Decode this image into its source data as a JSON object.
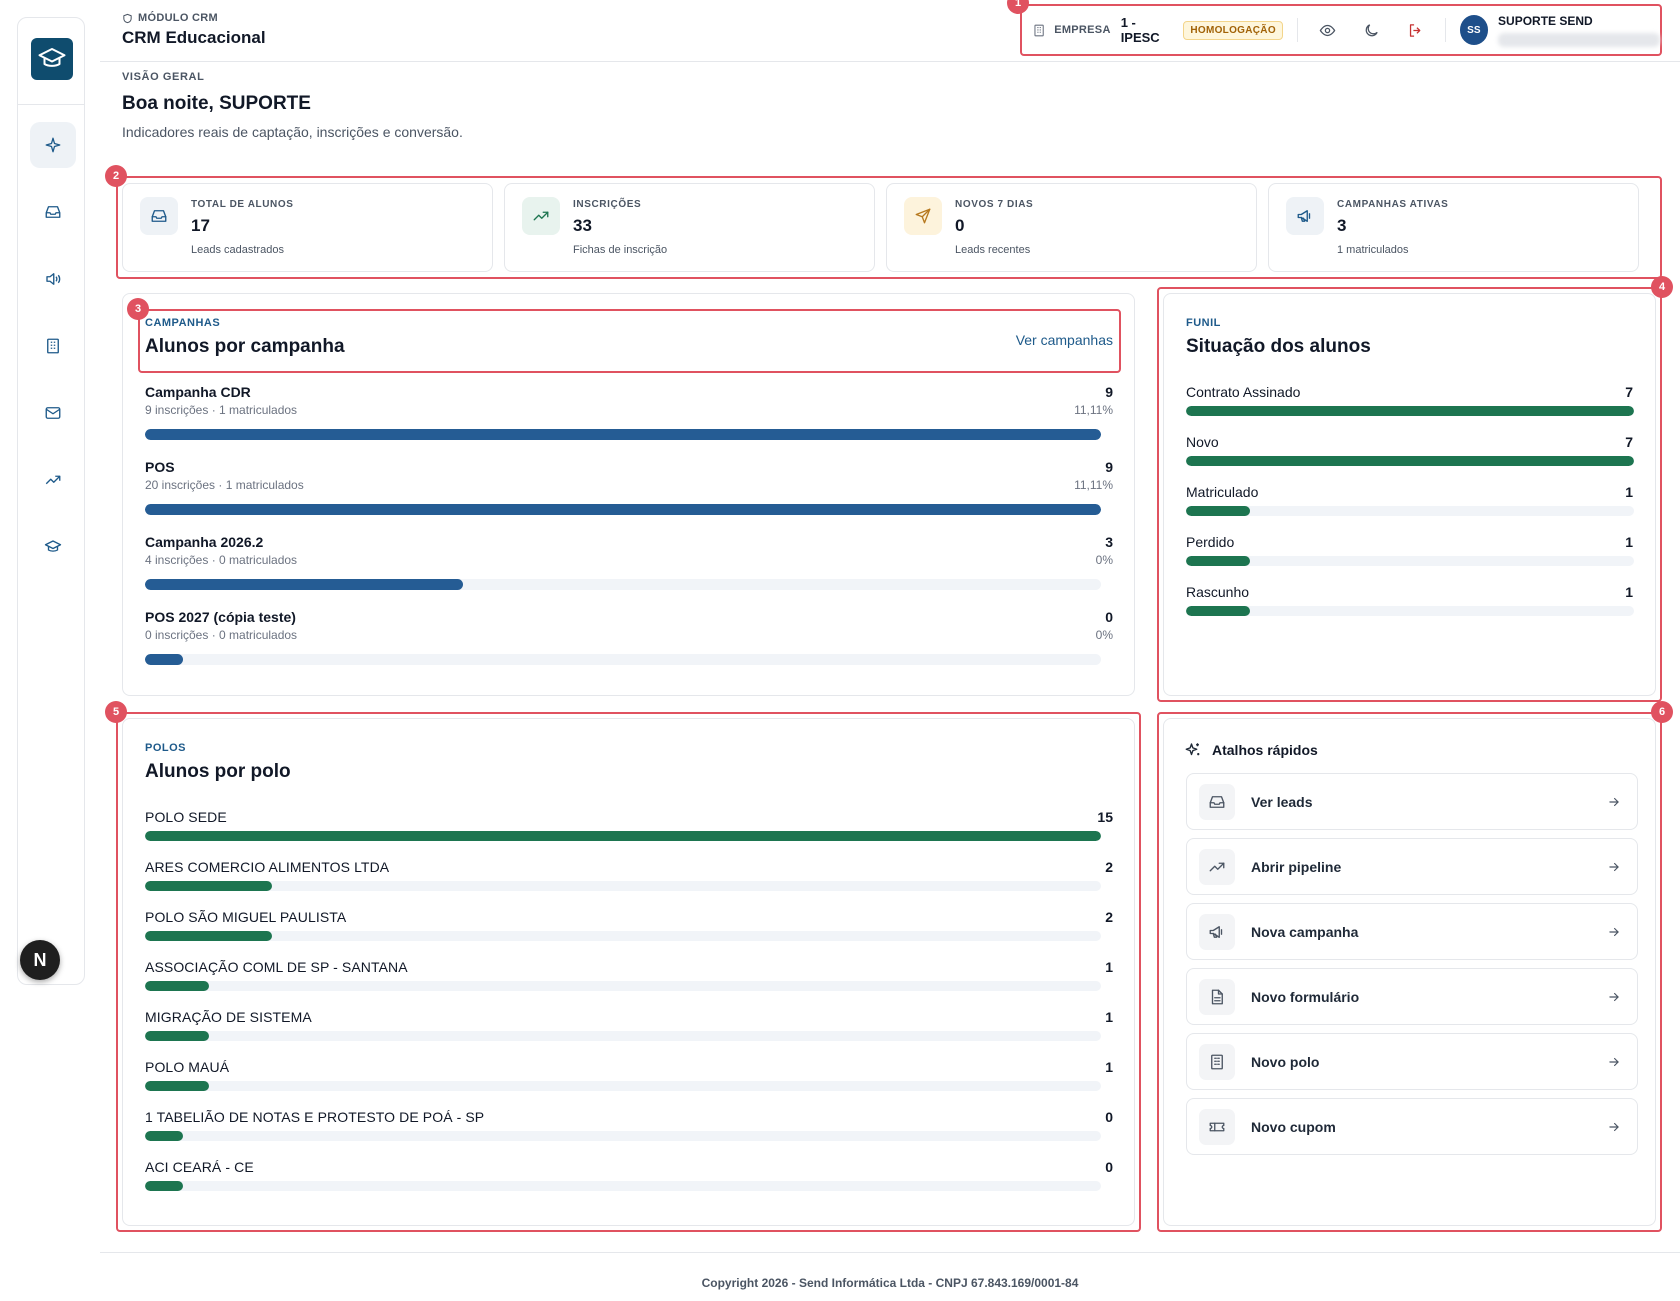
{
  "header": {
    "module_label": "MÓDULO CRM",
    "app_title": "CRM Educacional",
    "company_label": "EMPRESA",
    "company_value": "1 - IPESC",
    "env_badge": "HOMOLOGAÇÃO",
    "user_initials": "SS",
    "user_name": "SUPORTE SEND"
  },
  "page": {
    "overview_label": "VISÃO GERAL",
    "greeting": "Boa noite, SUPORTE",
    "subtitle": "Indicadores reais de captação, inscrições e conversão."
  },
  "markers": [
    "1",
    "2",
    "3",
    "4",
    "5",
    "6"
  ],
  "stats": [
    {
      "label": "TOTAL DE ALUNOS",
      "value": "17",
      "sub": "Leads cadastrados",
      "icon": "inbox-icon",
      "tint": "#eef2f6",
      "color": "#1e5a8a"
    },
    {
      "label": "INSCRIÇÕES",
      "value": "33",
      "sub": "Fichas de inscrição",
      "icon": "trending-up-icon",
      "tint": "#e8f3ee",
      "color": "#1d7550"
    },
    {
      "label": "NOVOS 7 DIAS",
      "value": "0",
      "sub": "Leads recentes",
      "icon": "send-icon",
      "tint": "#fdf3dc",
      "color": "#b7791f"
    },
    {
      "label": "CAMPANHAS ATIVAS",
      "value": "3",
      "sub": "1 matriculados",
      "icon": "megaphone-icon",
      "tint": "#eef2f6",
      "color": "#1e5a8a"
    }
  ],
  "campaigns": {
    "kicker": "CAMPANHAS",
    "title": "Alunos por campanha",
    "link": "Ver campanhas",
    "items": [
      {
        "name": "Campanha CDR",
        "count": "9",
        "sub": "9 inscrições · 1 matriculados",
        "pct": "11,11%",
        "fill": 1.0
      },
      {
        "name": "POS",
        "count": "9",
        "sub": "20 inscrições · 1 matriculados",
        "pct": "11,11%",
        "fill": 1.0
      },
      {
        "name": "Campanha 2026.2",
        "count": "3",
        "sub": "4 inscrições · 0 matriculados",
        "pct": "0%",
        "fill": 0.333
      },
      {
        "name": "POS 2027 (cópia teste)",
        "count": "0",
        "sub": "0 inscrições · 0 matriculados",
        "pct": "0%",
        "fill": 0.04
      }
    ]
  },
  "funnel": {
    "kicker": "FUNIL",
    "title": "Situação dos alunos",
    "items": [
      {
        "name": "Contrato Assinado",
        "count": "7",
        "fill": 1.0
      },
      {
        "name": "Novo",
        "count": "7",
        "fill": 1.0
      },
      {
        "name": "Matriculado",
        "count": "1",
        "fill": 0.143
      },
      {
        "name": "Perdido",
        "count": "1",
        "fill": 0.143
      },
      {
        "name": "Rascunho",
        "count": "1",
        "fill": 0.143
      }
    ]
  },
  "polos": {
    "kicker": "POLOS",
    "title": "Alunos por polo",
    "items": [
      {
        "name": "POLO SEDE",
        "count": "15",
        "fill": 1.0
      },
      {
        "name": "ARES COMERCIO ALIMENTOS LTDA",
        "count": "2",
        "fill": 0.133
      },
      {
        "name": "POLO SÃO MIGUEL PAULISTA",
        "count": "2",
        "fill": 0.133
      },
      {
        "name": "ASSOCIAÇÃO COML DE SP - SANTANA",
        "count": "1",
        "fill": 0.067
      },
      {
        "name": "MIGRAÇÃO DE SISTEMA",
        "count": "1",
        "fill": 0.067
      },
      {
        "name": "POLO MAUÁ",
        "count": "1",
        "fill": 0.067
      },
      {
        "name": "1 TABELIÃO DE NOTAS E PROTESTO DE POÁ - SP",
        "count": "0",
        "fill": 0.04
      },
      {
        "name": "ACI CEARÁ - CE",
        "count": "0",
        "fill": 0.04
      }
    ]
  },
  "shortcuts": {
    "title": "Atalhos rápidos",
    "items": [
      {
        "label": "Ver leads",
        "icon": "inbox-icon"
      },
      {
        "label": "Abrir pipeline",
        "icon": "trending-up-icon"
      },
      {
        "label": "Nova campanha",
        "icon": "megaphone-icon"
      },
      {
        "label": "Novo formulário",
        "icon": "file-icon"
      },
      {
        "label": "Novo polo",
        "icon": "building-icon"
      },
      {
        "label": "Novo cupom",
        "icon": "ticket-icon"
      }
    ]
  },
  "footer": "Copyright 2026 - Send Informática Ltda - CNPJ 67.843.169/0001-84"
}
